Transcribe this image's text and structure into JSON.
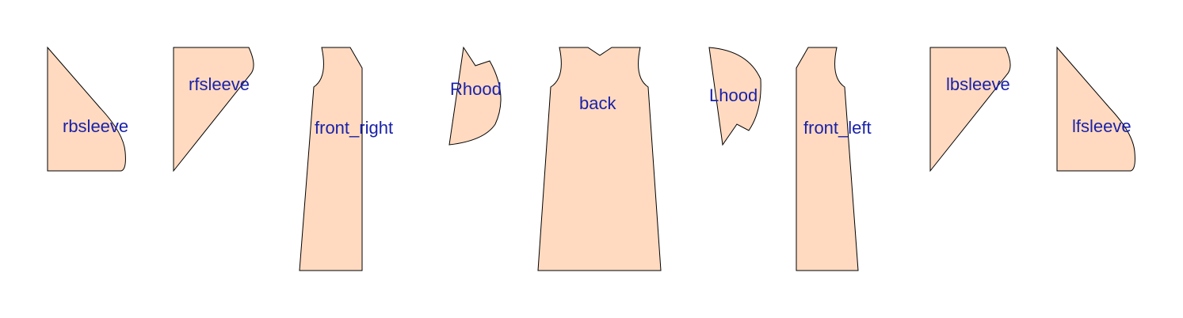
{
  "colors": {
    "fill": "#ffdac0",
    "stroke": "#000000",
    "label": "#1a22a8",
    "background": "#ffffff"
  },
  "pieces": [
    {
      "id": "rbsleeve",
      "label": "rbsleeve"
    },
    {
      "id": "rfsleeve",
      "label": "rfsleeve"
    },
    {
      "id": "front_right",
      "label": "front_right"
    },
    {
      "id": "rhood",
      "label": "Rhood"
    },
    {
      "id": "back",
      "label": "back"
    },
    {
      "id": "lhood",
      "label": "Lhood"
    },
    {
      "id": "front_left",
      "label": "front_left"
    },
    {
      "id": "lbsleeve",
      "label": "lbsleeve"
    },
    {
      "id": "lfsleeve",
      "label": "lfsleeve"
    }
  ]
}
